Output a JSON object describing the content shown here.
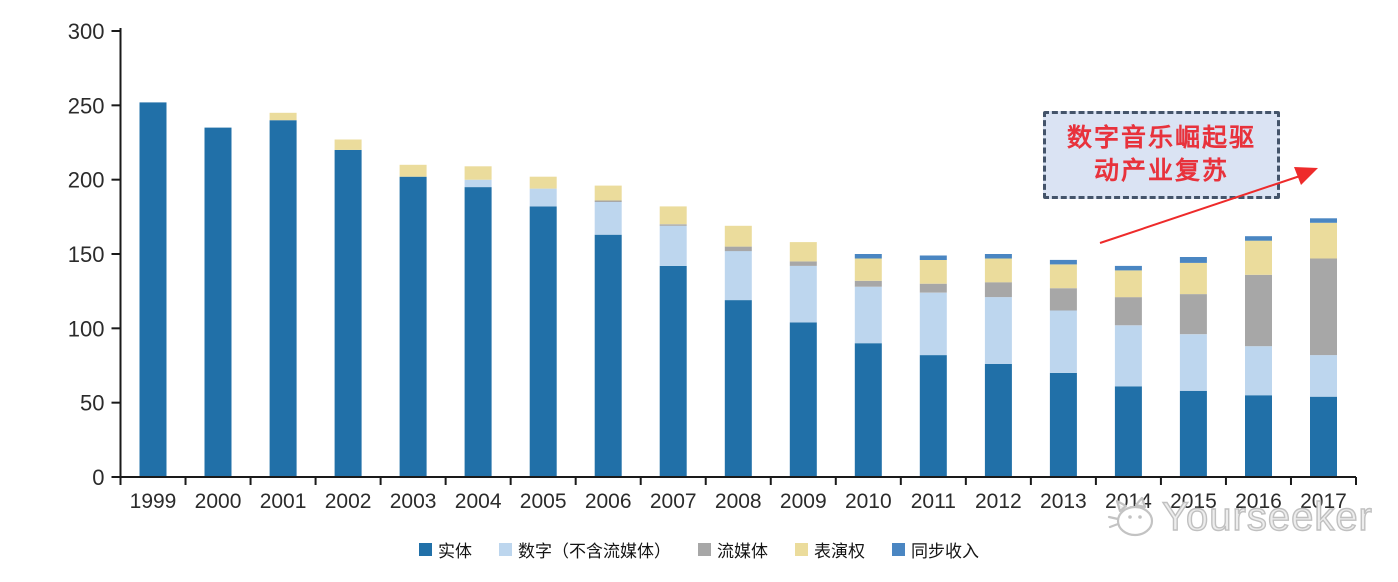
{
  "chart_data": {
    "type": "bar",
    "stacked": true,
    "categories": [
      "1999",
      "2000",
      "2001",
      "2002",
      "2003",
      "2004",
      "2005",
      "2006",
      "2007",
      "2008",
      "2009",
      "2010",
      "2011",
      "2012",
      "2013",
      "2014",
      "2015",
      "2016",
      "2017"
    ],
    "series": [
      {
        "name": "实体",
        "color": "#2170A8",
        "values": [
          252,
          235,
          240,
          220,
          202,
          195,
          182,
          163,
          142,
          119,
          104,
          90,
          82,
          76,
          70,
          61,
          58,
          55,
          54
        ]
      },
      {
        "name": "数字（不含流媒体）",
        "color": "#BDD6EE",
        "values": [
          0,
          0,
          0,
          0,
          0,
          5,
          12,
          22,
          27,
          33,
          38,
          38,
          42,
          45,
          42,
          41,
          38,
          33,
          28
        ]
      },
      {
        "name": "流媒体",
        "color": "#A7A7A7",
        "values": [
          0,
          0,
          0,
          0,
          0,
          0,
          0,
          1,
          1,
          3,
          3,
          4,
          6,
          10,
          15,
          19,
          27,
          48,
          65
        ]
      },
      {
        "name": "表演权",
        "color": "#EBDC9C",
        "values": [
          0,
          0,
          5,
          7,
          8,
          9,
          8,
          10,
          12,
          14,
          13,
          15,
          16,
          16,
          16,
          18,
          21,
          23,
          24
        ]
      },
      {
        "name": "同步收入",
        "color": "#4A86C2",
        "values": [
          0,
          0,
          0,
          0,
          0,
          0,
          0,
          0,
          0,
          0,
          0,
          3,
          3,
          3,
          3,
          3,
          4,
          3,
          3
        ]
      }
    ],
    "ylim": [
      0,
      300
    ],
    "yticks": [
      0,
      50,
      100,
      150,
      200,
      250,
      300
    ],
    "grid": false,
    "legend_position": "bottom",
    "title": "",
    "xlabel": "",
    "ylabel": ""
  },
  "annotation": {
    "line1": "数字音乐崛起驱",
    "line2": "动产业复苏",
    "text_color": "#E8323C",
    "border_color": "#44546A",
    "fill_color": "#DAE3F3",
    "arrow_color": "#EE2B2B"
  },
  "watermark": {
    "text": "Yourseeker"
  },
  "axis": {
    "line_color": "#1a1a1a",
    "label_color": "#2b2b2b"
  }
}
